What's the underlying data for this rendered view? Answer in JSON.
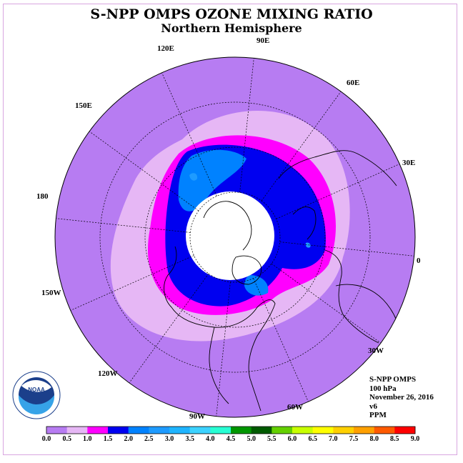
{
  "title": "S-NPP OMPS OZONE MIXING RATIO",
  "subtitle": "Northern Hemisphere",
  "longitude_labels": [
    "90E",
    "60E",
    "30E",
    "0",
    "30W",
    "60W",
    "90W",
    "120W",
    "150W",
    "180",
    "150E",
    "120E"
  ],
  "info": {
    "instrument": "S-NPP OMPS",
    "level": "100 hPa",
    "date": "November 26, 2016",
    "version": "v6",
    "units": "PPM"
  },
  "colorbar": {
    "ticks": [
      "0.0",
      "0.5",
      "1.0",
      "1.5",
      "2.0",
      "2.5",
      "3.0",
      "3.5",
      "4.0",
      "4.5",
      "5.0",
      "5.5",
      "6.0",
      "6.5",
      "7.0",
      "7.5",
      "8.0",
      "8.5",
      "9.0"
    ],
    "colors": [
      "#b77cf2",
      "#e6b7f5",
      "#ff00ff",
      "#0000f0",
      "#0082ff",
      "#1e9bff",
      "#1fb4ff",
      "#3cd2ff",
      "#28ffd4",
      "#009600",
      "#005a00",
      "#64d000",
      "#c8ff00",
      "#ffff00",
      "#ffd000",
      "#ffa000",
      "#ff5a00",
      "#ff0000",
      "#7a4a2a"
    ]
  },
  "map_fill_colors": {
    "background": "#b77cf2",
    "band_0_5": "#e6b7f5",
    "band_1_0": "#ff00ff",
    "band_1_5": "#0000f0",
    "band_2_0": "#0082ff",
    "band_2_5": "#1e9bff",
    "polar_night": "#ffffff"
  },
  "logo": {
    "text": "NOAA",
    "ring_text_top": "NATIONAL OCEANIC AND ATMOSPHERIC ADMINISTRATION",
    "ring_text_bottom": "U.S. DEPARTMENT OF COMMERCE"
  }
}
